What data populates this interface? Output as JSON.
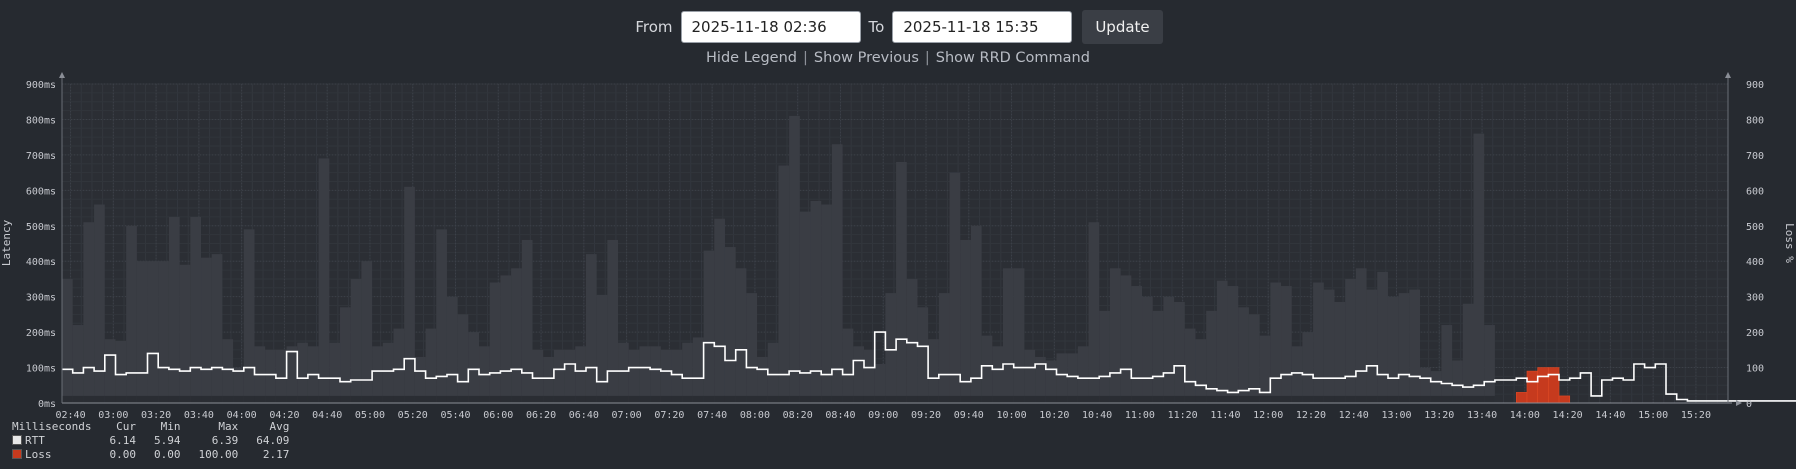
{
  "controls": {
    "from_label": "From",
    "from_value": "2025-11-18 02:36",
    "to_label": "To",
    "to_value": "2025-11-18 15:35",
    "update_label": "Update",
    "links": [
      "Hide Legend",
      "Show Previous",
      "Show RRD Command"
    ],
    "separator": "|"
  },
  "chart_data": {
    "type": "area",
    "left_axis": {
      "label": "Latency",
      "ticks": [
        "0ms",
        "100ms",
        "200ms",
        "300ms",
        "400ms",
        "500ms",
        "600ms",
        "700ms",
        "800ms",
        "900ms"
      ],
      "ylim": [
        0,
        900
      ]
    },
    "right_axis": {
      "label": "Loss %",
      "ticks": [
        "0",
        "100",
        "200",
        "300",
        "400",
        "500",
        "600",
        "700",
        "800",
        "900"
      ],
      "ylim": [
        0,
        900
      ]
    },
    "x_ticks": [
      "02:40",
      "03:00",
      "03:20",
      "03:40",
      "04:00",
      "04:20",
      "04:40",
      "05:00",
      "05:20",
      "05:40",
      "06:00",
      "06:20",
      "06:40",
      "07:00",
      "07:20",
      "07:40",
      "08:00",
      "08:20",
      "08:40",
      "09:00",
      "09:20",
      "09:40",
      "10:00",
      "10:20",
      "10:40",
      "11:00",
      "11:20",
      "11:40",
      "12:00",
      "12:20",
      "12:40",
      "13:00",
      "13:20",
      "13:40",
      "14:00",
      "14:20",
      "14:40",
      "15:00",
      "15:20"
    ],
    "x_range_minutes": [
      156,
      935
    ],
    "x_first_tick_minutes": 160,
    "x_tick_step_minutes": 20,
    "sample_step_minutes": 5,
    "series": [
      {
        "name": "RTT",
        "kind": "smoke-max",
        "color": "#3a3d44",
        "values": [
          350,
          220,
          510,
          560,
          180,
          175,
          500,
          400,
          400,
          400,
          525,
          390,
          525,
          410,
          420,
          180,
          100,
          490,
          160,
          150,
          150,
          160,
          170,
          160,
          690,
          170,
          270,
          350,
          400,
          160,
          170,
          210,
          610,
          130,
          210,
          490,
          300,
          250,
          200,
          160,
          340,
          360,
          380,
          460,
          150,
          130,
          150,
          150,
          160,
          420,
          305,
          460,
          170,
          150,
          160,
          160,
          150,
          150,
          170,
          185,
          430,
          520,
          440,
          380,
          310,
          130,
          170,
          670,
          810,
          540,
          570,
          560,
          730,
          210,
          160,
          150,
          110,
          310,
          680,
          350,
          270,
          180,
          310,
          650,
          460,
          500,
          190,
          160,
          380,
          380,
          150,
          130,
          120,
          140,
          140,
          160,
          510,
          260,
          380,
          360,
          330,
          300,
          260,
          300,
          285,
          210,
          180,
          260,
          345,
          330,
          270,
          250,
          190,
          340,
          330,
          160,
          200,
          340,
          320,
          285,
          350,
          380,
          320,
          370,
          300,
          310,
          320,
          100,
          90,
          220,
          120,
          280,
          760,
          220,
          0,
          0,
          0,
          0,
          0,
          0,
          0,
          0,
          0,
          0,
          0,
          0,
          0,
          0,
          0,
          0,
          0,
          0,
          0,
          0,
          0,
          0,
          0,
          0,
          0,
          0,
          0,
          0,
          0,
          0
        ]
      },
      {
        "name": "RTT",
        "kind": "median-line",
        "color": "#ffffff",
        "values": [
          95,
          85,
          100,
          90,
          135,
          80,
          85,
          85,
          140,
          100,
          95,
          90,
          100,
          95,
          100,
          95,
          90,
          100,
          80,
          80,
          70,
          145,
          70,
          80,
          70,
          70,
          60,
          65,
          65,
          90,
          90,
          95,
          125,
          90,
          70,
          75,
          80,
          60,
          95,
          80,
          85,
          90,
          95,
          85,
          70,
          70,
          95,
          110,
          90,
          100,
          60,
          90,
          90,
          100,
          100,
          95,
          90,
          80,
          70,
          70,
          170,
          160,
          120,
          150,
          100,
          95,
          80,
          80,
          90,
          85,
          90,
          80,
          95,
          80,
          120,
          100,
          200,
          150,
          180,
          170,
          160,
          70,
          80,
          80,
          60,
          70,
          105,
          95,
          110,
          100,
          100,
          110,
          95,
          80,
          75,
          70,
          70,
          75,
          85,
          95,
          70,
          70,
          75,
          85,
          105,
          60,
          50,
          40,
          35,
          30,
          35,
          40,
          30,
          70,
          80,
          85,
          80,
          70,
          70,
          70,
          75,
          90,
          105,
          80,
          70,
          80,
          75,
          70,
          60,
          55,
          50,
          45,
          50,
          60,
          65,
          65,
          70,
          60,
          75,
          80,
          65,
          70,
          85,
          20,
          65,
          70,
          65,
          110,
          100,
          110,
          25,
          10,
          6,
          6,
          6,
          6,
          6,
          6,
          6,
          6,
          6,
          6,
          6,
          6,
          6,
          6
        ]
      },
      {
        "name": "Loss",
        "kind": "loss-bars",
        "color": "#c63a1e",
        "values": [
          0,
          0,
          0,
          0,
          0,
          0,
          0,
          0,
          0,
          0,
          0,
          0,
          0,
          0,
          0,
          0,
          0,
          0,
          0,
          0,
          0,
          0,
          0,
          0,
          0,
          0,
          0,
          0,
          0,
          0,
          0,
          0,
          0,
          0,
          0,
          0,
          0,
          0,
          0,
          0,
          0,
          0,
          0,
          0,
          0,
          0,
          0,
          0,
          0,
          0,
          0,
          0,
          0,
          0,
          0,
          0,
          0,
          0,
          0,
          0,
          0,
          0,
          0,
          0,
          0,
          0,
          0,
          0,
          0,
          0,
          0,
          0,
          0,
          0,
          0,
          0,
          0,
          0,
          0,
          0,
          0,
          0,
          0,
          0,
          0,
          0,
          0,
          0,
          0,
          0,
          0,
          0,
          0,
          0,
          0,
          0,
          0,
          0,
          0,
          0,
          0,
          0,
          0,
          0,
          0,
          0,
          0,
          0,
          0,
          0,
          0,
          0,
          0,
          0,
          0,
          0,
          0,
          0,
          0,
          0,
          0,
          0,
          0,
          0,
          0,
          0,
          0,
          0,
          0,
          0,
          0,
          0,
          0,
          0,
          0,
          0,
          30,
          90,
          100,
          100,
          20,
          0,
          0,
          0,
          0,
          0,
          0,
          0,
          0,
          0,
          0,
          0,
          0,
          0,
          0,
          0,
          0,
          0,
          0,
          0
        ]
      }
    ],
    "legend": {
      "unit_label": "Milliseconds",
      "columns": [
        "Cur",
        "Min",
        "Max",
        "Avg"
      ],
      "rows": [
        {
          "name": "RTT",
          "color": "#e8e8e8",
          "values": [
            "6.14",
            "5.94",
            "6.39",
            "64.09"
          ]
        },
        {
          "name": "Loss",
          "color": "#c63a1e",
          "values": [
            "0.00",
            "0.00",
            "100.00",
            "2.17"
          ]
        }
      ]
    },
    "grid": true
  }
}
